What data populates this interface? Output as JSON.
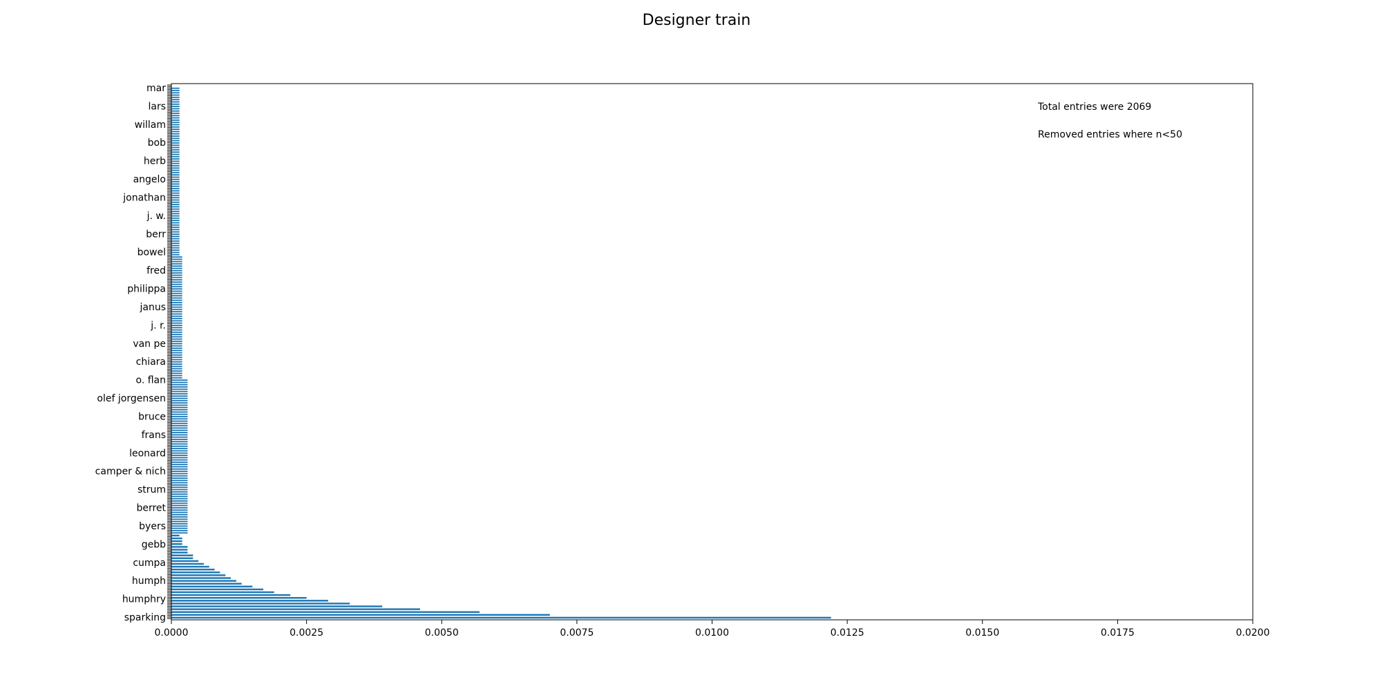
{
  "chart_data": {
    "type": "bar",
    "orientation": "horizontal",
    "title": "Designer train",
    "xlabel": "",
    "ylabel": "",
    "xlim": [
      0,
      0.02
    ],
    "x_ticks": [
      "0.0000",
      "0.0025",
      "0.0050",
      "0.0075",
      "0.0100",
      "0.0125",
      "0.0150",
      "0.0175",
      "0.0200"
    ],
    "bar_color": "#1f77b4",
    "grid": false,
    "annotations": [
      "Total entries were 2069",
      "Removed entries where n<50"
    ],
    "categories": [
      "sparking",
      "humphry",
      "humph",
      "cumpa",
      "gebb",
      "byers",
      "berret",
      "strum",
      "camper & nich",
      "leonard",
      "frans",
      "bruce",
      "olef jorgensen",
      "o. flan",
      "chiara",
      "van pe",
      "j. r.",
      "janus",
      "philippa",
      "fred",
      "bowel",
      "berr",
      "j. w.",
      "jonathan",
      "angelo",
      "herb",
      "bob",
      "willam",
      "lars",
      "mar"
    ],
    "values": [
      0.0122,
      0.007,
      0.0057,
      0.0046,
      0.0039,
      0.0033,
      0.0029,
      0.0025,
      0.0022,
      0.0019,
      0.0017,
      0.0015,
      0.0013,
      0.0012,
      0.0011,
      0.001,
      0.0009,
      0.0008,
      0.0007,
      0.0006,
      0.0005,
      0.0004,
      0.0004,
      0.0003,
      0.0003,
      0.0003,
      0.0002,
      0.0002,
      0.0002,
      0.00015
    ],
    "tail_values": [
      0.0003,
      0.0002,
      0.00015
    ]
  }
}
